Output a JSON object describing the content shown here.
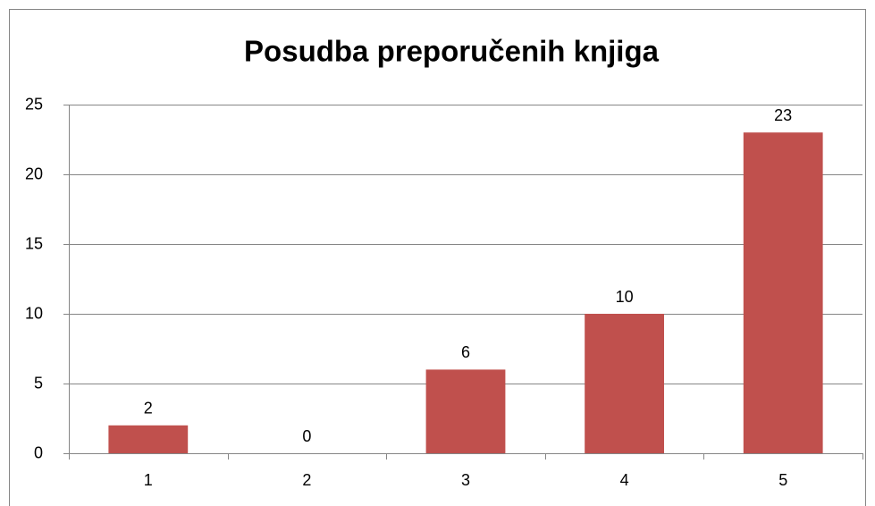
{
  "chart_data": {
    "type": "bar",
    "title": "Posudba preporučenih knjiga",
    "categories": [
      "1",
      "2",
      "3",
      "4",
      "5"
    ],
    "values": [
      2,
      0,
      6,
      10,
      23
    ],
    "color": "#c0504d",
    "ylim": [
      0,
      25
    ],
    "yticks": [
      0,
      5,
      10,
      15,
      20,
      25
    ],
    "grid": true,
    "data_labels": true
  }
}
